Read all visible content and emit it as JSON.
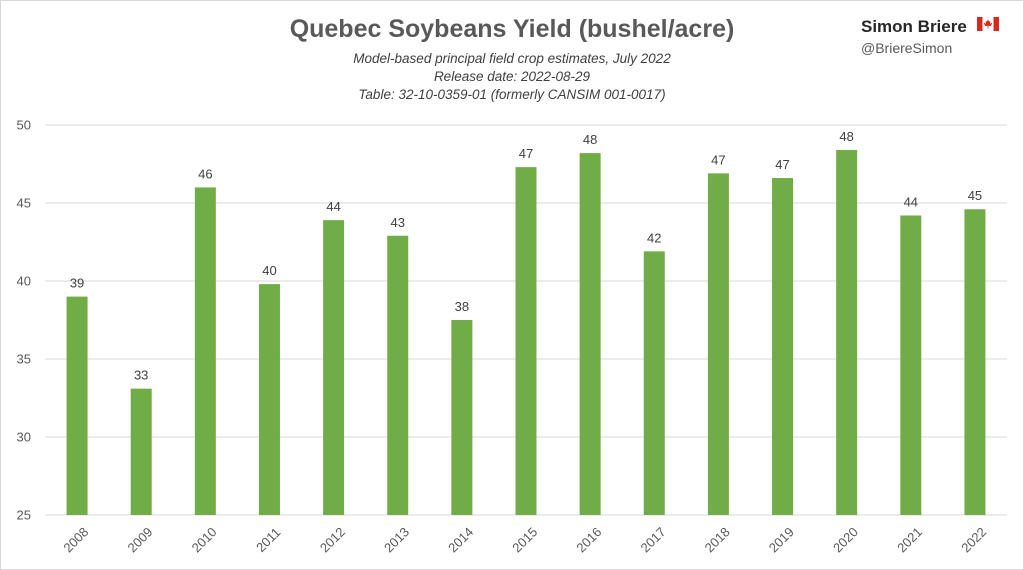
{
  "header": {
    "title": "Quebec Soybeans Yield (bushel/acre)",
    "subtitle_lines": [
      "Model-based principal field crop estimates, July 2022",
      "Release date: 2022-08-29",
      "Table: 32-10-0359-01 (formerly CANSIM 001-0017)"
    ]
  },
  "brand": {
    "name": "Simon Briere",
    "handle": "@BriereSimon",
    "flag_icon": "canada-flag-icon"
  },
  "colors": {
    "bar": "#70ad47",
    "grid": "#d9d9d9",
    "text": "#595959"
  },
  "chart_data": {
    "type": "bar",
    "title": "Quebec Soybeans Yield (bushel/acre)",
    "xlabel": "",
    "ylabel": "",
    "categories": [
      "2008",
      "2009",
      "2010",
      "2011",
      "2012",
      "2013",
      "2014",
      "2015",
      "2016",
      "2017",
      "2018",
      "2019",
      "2020",
      "2021",
      "2022"
    ],
    "values": [
      39.0,
      33.1,
      46.0,
      39.8,
      43.9,
      42.9,
      37.5,
      47.3,
      48.2,
      41.9,
      46.9,
      46.6,
      48.4,
      44.2,
      44.6
    ],
    "data_labels": [
      "39",
      "33",
      "46",
      "40",
      "44",
      "43",
      "38",
      "47",
      "48",
      "42",
      "47",
      "47",
      "48",
      "44",
      "45"
    ],
    "ylim": [
      25,
      50
    ],
    "yticks": [
      "25",
      "30",
      "35",
      "40",
      "45",
      "50"
    ],
    "grid": true,
    "legend": "none"
  }
}
